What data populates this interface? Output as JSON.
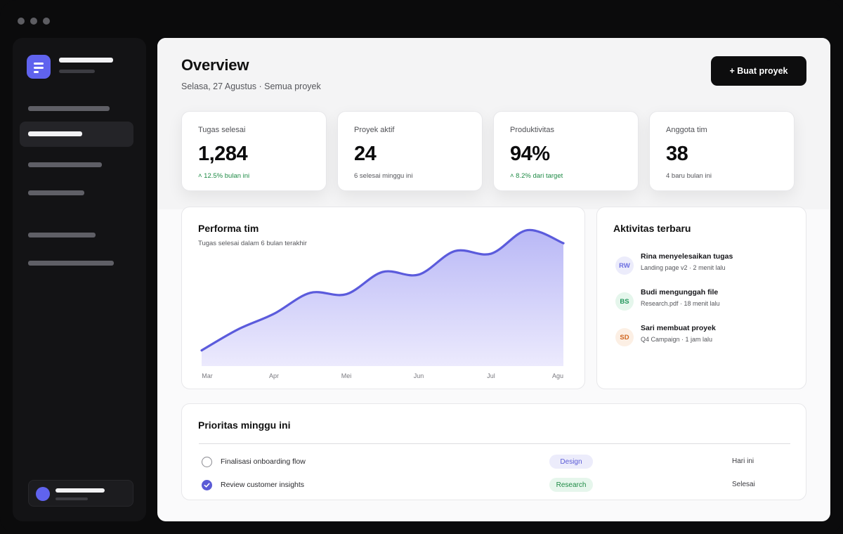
{
  "window": {
    "traffic_lights": [
      "dot-1",
      "dot-2",
      "dot-3"
    ]
  },
  "header": {
    "title": "Overview",
    "subtitle": "Selasa, 27 Agustus · Semua proyek",
    "cta_label": "+ Buat proyek"
  },
  "stats": [
    {
      "label": "Tugas selesai",
      "value": "1,284",
      "note": "˄ 12.5% bulan ini",
      "trend": "up"
    },
    {
      "label": "Proyek aktif",
      "value": "24",
      "note": "6 selesai minggu ini",
      "trend": "neutral"
    },
    {
      "label": "Produktivitas",
      "value": "94%",
      "note": "˄ 8.2% dari target",
      "trend": "up"
    },
    {
      "label": "Anggota tim",
      "value": "38",
      "note": "4 baru bulan ini",
      "trend": "neutral"
    }
  ],
  "performance": {
    "title": "Performa tim",
    "subtitle": "Tugas selesai dalam 6 bulan terakhir"
  },
  "chart_data": {
    "type": "area",
    "title": "Performa tim",
    "subtitle": "Tugas selesai dalam 6 bulan terakhir",
    "categories": [
      "Mar",
      "Apr",
      "Mei",
      "Jun",
      "Jul",
      "Agu"
    ],
    "x_ticks": [
      "Mar",
      "Apr",
      "Mei",
      "Jun",
      "Jul",
      "Agu"
    ],
    "x": [
      0,
      0.5,
      1,
      1.5,
      2,
      2.5,
      3,
      3.5,
      4,
      4.5,
      5
    ],
    "values": [
      12,
      28,
      40,
      56,
      55,
      72,
      70,
      88,
      86,
      104,
      94
    ],
    "ylim": [
      0,
      100
    ],
    "grid": false,
    "legend": "none",
    "colors": {
      "line": "#5b5bdc",
      "fill_top": "#b9b8f6",
      "fill_bottom": "#eceafd"
    }
  },
  "activity": {
    "title": "Aktivitas terbaru",
    "items": [
      {
        "initials": "RW",
        "title": "Rina menyelesaikan tugas",
        "meta": "Landing page v2 · 2 menit lalu",
        "color": "#6b6ee0",
        "bg": "#ececfb"
      },
      {
        "initials": "BS",
        "title": "Budi mengunggah file",
        "meta": "Research.pdf · 18 menit lalu",
        "color": "#21955a",
        "bg": "#e5f6ec"
      },
      {
        "initials": "SD",
        "title": "Sari membuat proyek",
        "meta": "Q4 Campaign · 1 jam lalu",
        "color": "#d0651f",
        "bg": "#fcefe4"
      }
    ]
  },
  "priorities": {
    "title": "Prioritas minggu ini",
    "tasks": [
      {
        "label": "Finalisasi onboarding flow",
        "tag": "Design",
        "tag_color": "#5b5bd6",
        "tag_bg": "#ececfb",
        "due": "Hari ini",
        "done": false
      },
      {
        "label": "Review customer insights",
        "tag": "Research",
        "tag_color": "#1f8b46",
        "tag_bg": "#e6f6ec",
        "due": "Selesai",
        "done": true
      }
    ]
  },
  "colors": {
    "accent": "#6063ee",
    "dark": "#0d0d0e",
    "positive": "#1f8b46"
  }
}
